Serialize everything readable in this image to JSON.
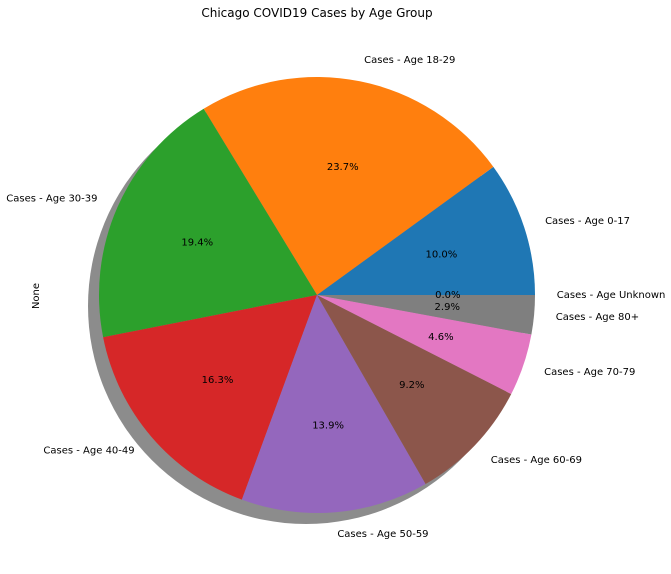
{
  "chart_data": {
    "type": "pie",
    "title": "Chicago COVID19 Cases by Age Group",
    "ylabel": "None",
    "startangle": 0,
    "counterclock": true,
    "shadow": true,
    "labels": [
      "Cases - Age 0-17",
      "Cases - Age 18-29",
      "Cases - Age 30-39",
      "Cases - Age 40-49",
      "Cases - Age 50-59",
      "Cases - Age 60-69",
      "Cases - Age 70-79",
      "Cases -  Age 80+",
      "Cases - Age Unknown"
    ],
    "values": [
      10.0,
      23.7,
      19.4,
      16.3,
      13.9,
      9.2,
      4.6,
      2.9,
      0.0
    ],
    "pct_labels": [
      "10.0%",
      "23.7%",
      "19.4%",
      "16.3%",
      "13.9%",
      "9.2%",
      "4.6%",
      "2.9%",
      "0.0%"
    ],
    "colors": [
      "#1f77b4",
      "#ff7f0e",
      "#2ca02c",
      "#d62728",
      "#9467bd",
      "#8c564b",
      "#e377c2",
      "#7f7f7f",
      "#bcbd22"
    ]
  }
}
